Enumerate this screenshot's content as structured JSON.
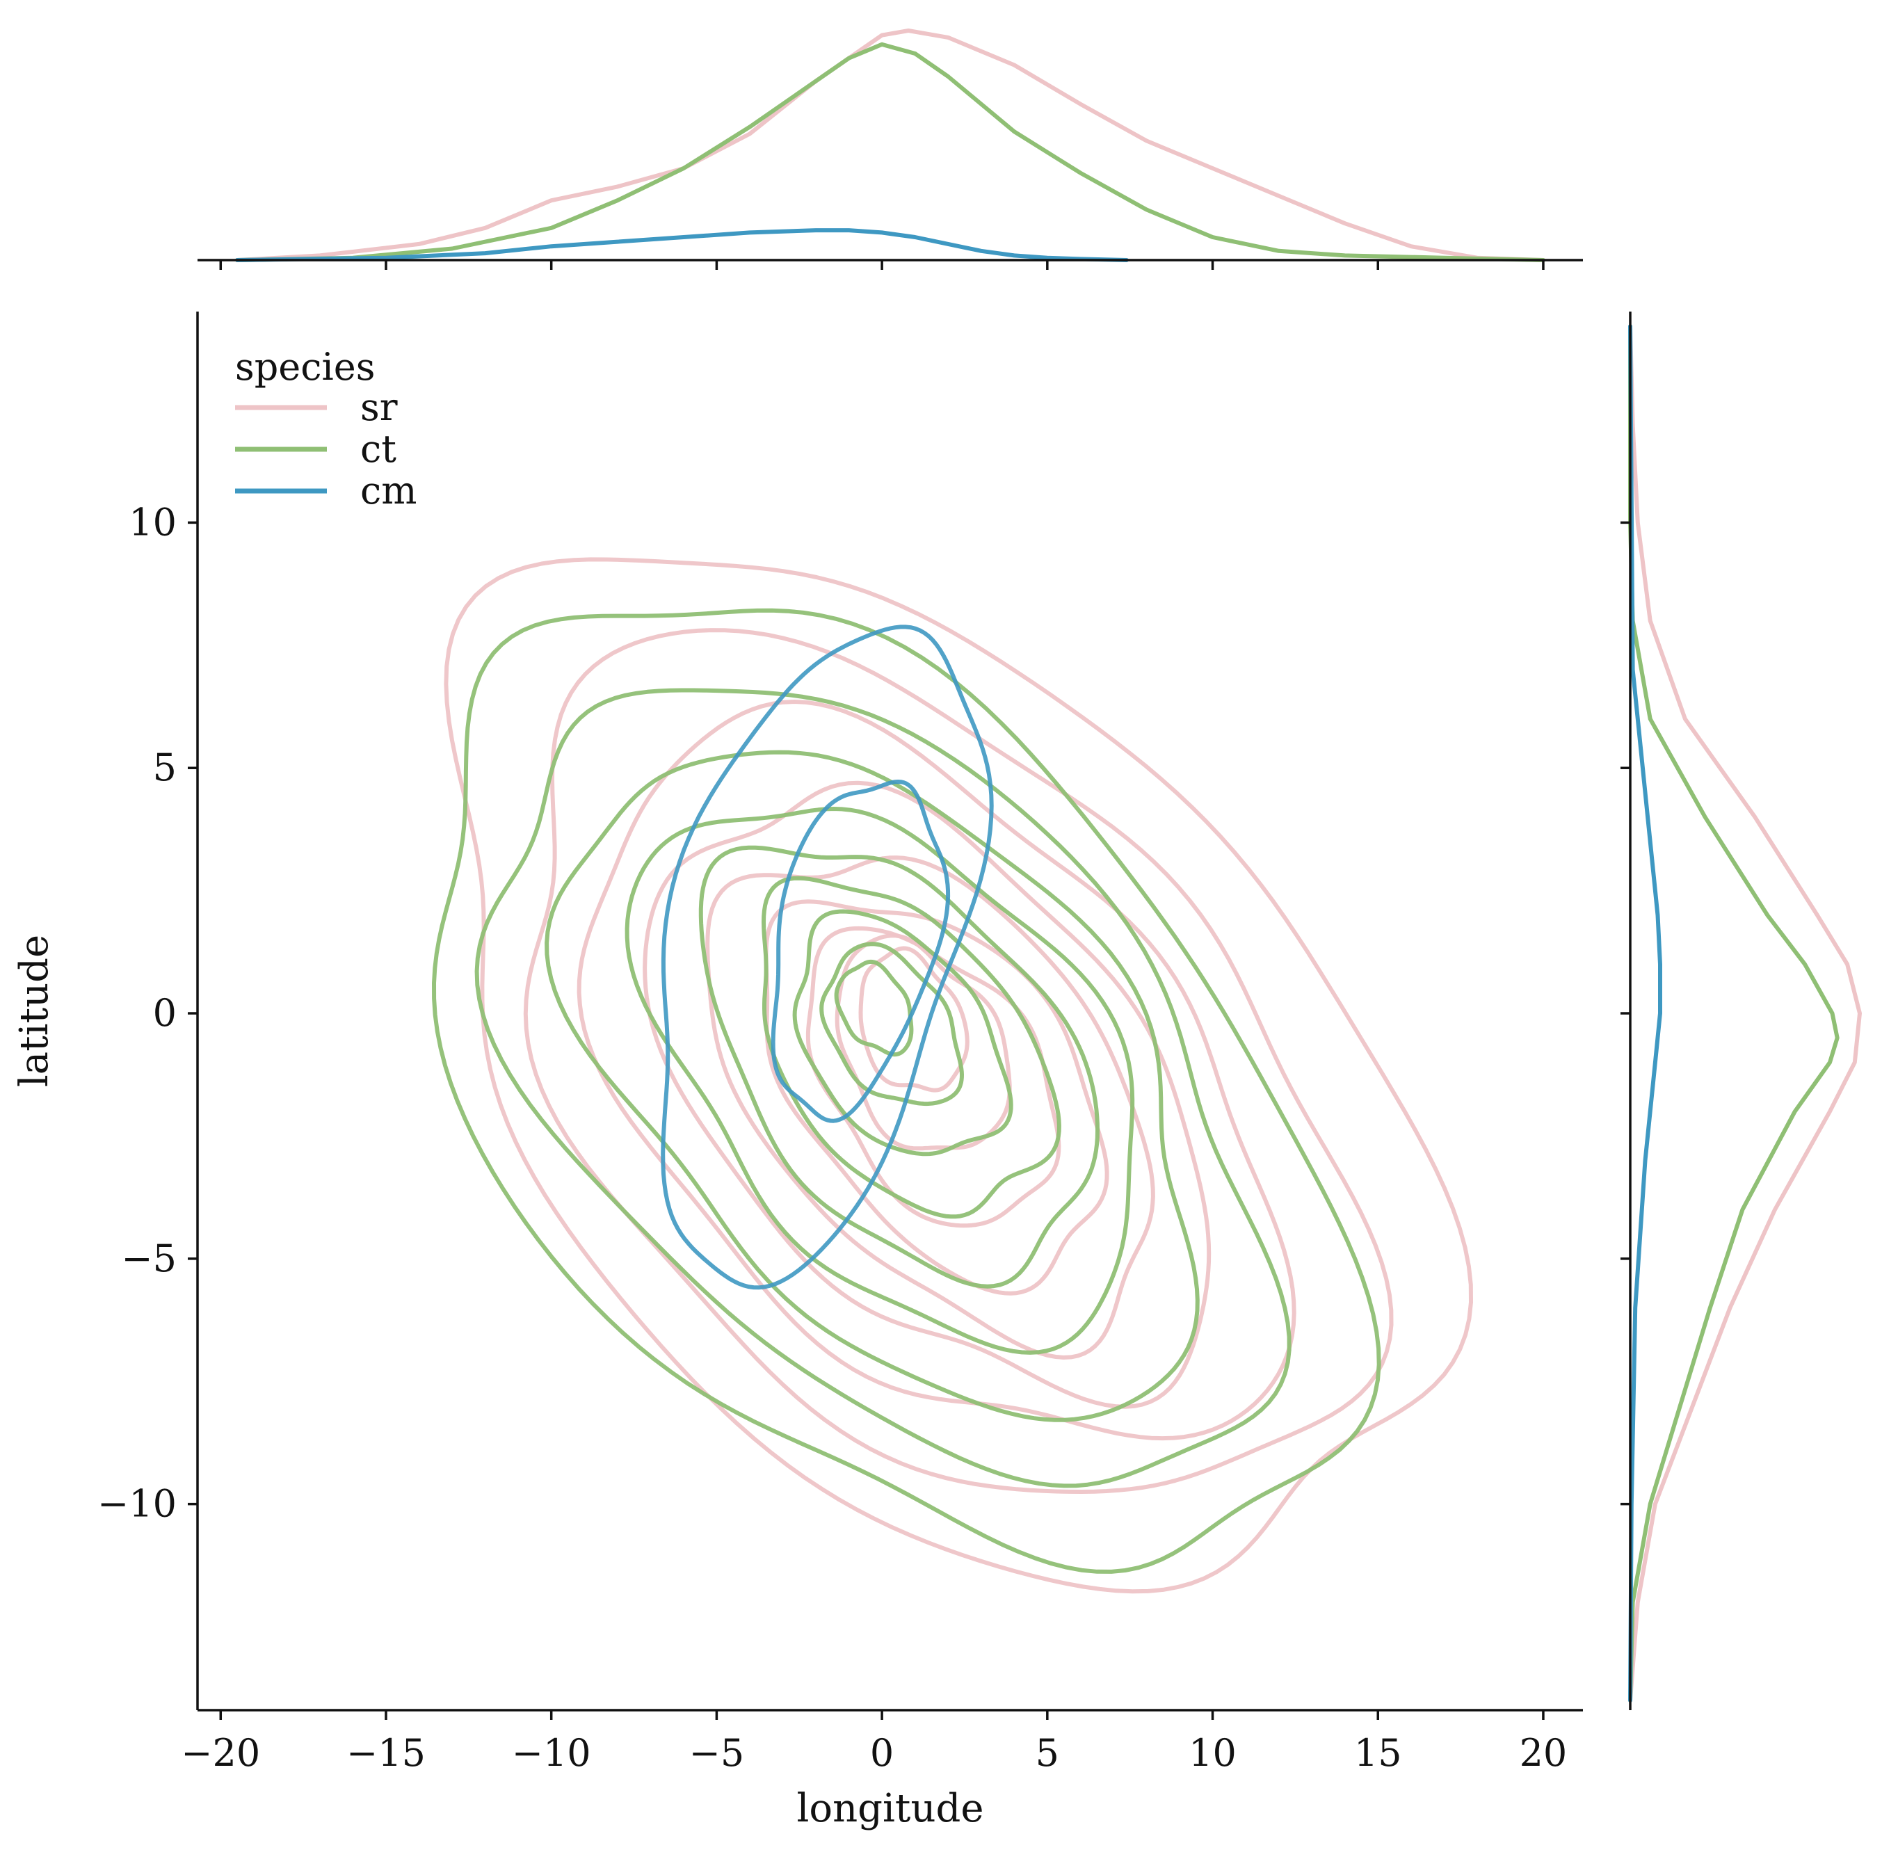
{
  "chart_data": {
    "type": "kde-joint",
    "xlabel": "longitude",
    "ylabel": "latitude",
    "xlim": [
      -20.7,
      21.2
    ],
    "ylim": [
      -14.2,
      14.3
    ],
    "x_ticks": [
      -20,
      -15,
      -10,
      -5,
      0,
      5,
      10,
      15,
      20
    ],
    "y_ticks": [
      -10,
      -5,
      0,
      5,
      10
    ],
    "x_tick_labels": [
      "−20",
      "−15",
      "−10",
      "−5",
      "0",
      "5",
      "10",
      "15",
      "20"
    ],
    "y_tick_labels": [
      "−10",
      "−5",
      "0",
      "5",
      "10"
    ],
    "grid": false,
    "legend": {
      "title": "species",
      "placement": "top-left",
      "entries": [
        "sr",
        "ct",
        "cm"
      ]
    },
    "series": [
      {
        "name": "sr",
        "color": "#eec4c7",
        "center": [
          1.5,
          -1.2
        ],
        "contours": [
          {
            "rx": 16.0,
            "ry": 8.8,
            "angle": -25,
            "dx": 0.0,
            "dy": 0.0
          },
          {
            "rx": 13.6,
            "ry": 7.3,
            "angle": -25,
            "dx": 0.0,
            "dy": -0.2
          },
          {
            "rx": 11.3,
            "ry": 6.0,
            "angle": -26,
            "dx": 0.0,
            "dy": -0.3
          },
          {
            "rx": 9.2,
            "ry": 4.9,
            "angle": -27,
            "dx": 0.1,
            "dy": -0.4
          },
          {
            "rx": 7.3,
            "ry": 4.0,
            "angle": -28,
            "dx": 0.1,
            "dy": -0.4
          },
          {
            "rx": 5.6,
            "ry": 3.2,
            "angle": -29,
            "dx": 0.1,
            "dy": -0.3
          },
          {
            "rx": 4.1,
            "ry": 2.5,
            "angle": -30,
            "dx": 0.0,
            "dy": -0.1
          },
          {
            "rx": 2.8,
            "ry": 1.9,
            "angle": -30,
            "dx": -0.3,
            "dy": 0.5
          },
          {
            "rx": 1.7,
            "ry": 1.3,
            "angle": -30,
            "dx": -0.6,
            "dy": 1.0
          }
        ],
        "marginal_x": {
          "x": [
            -19.5,
            -17,
            -14,
            -12,
            -10,
            -8,
            -6,
            -4,
            -2,
            0,
            0.8,
            2,
            4,
            6,
            8,
            10,
            12,
            14,
            16,
            18,
            20
          ],
          "density": [
            0.0,
            0.002,
            0.007,
            0.014,
            0.026,
            0.032,
            0.04,
            0.055,
            0.078,
            0.098,
            0.1,
            0.097,
            0.085,
            0.068,
            0.052,
            0.04,
            0.028,
            0.016,
            0.006,
            0.001,
            0.0
          ]
        },
        "marginal_y": {
          "y": [
            -14,
            -12,
            -10,
            -8,
            -6,
            -4,
            -2,
            -1,
            0,
            1,
            2,
            4,
            6,
            8,
            10,
            12,
            14
          ],
          "density": [
            0.0,
            0.003,
            0.01,
            0.025,
            0.04,
            0.058,
            0.08,
            0.09,
            0.092,
            0.087,
            0.075,
            0.05,
            0.022,
            0.008,
            0.003,
            0.001,
            0.0
          ]
        }
      },
      {
        "name": "ct",
        "color": "#8fbf74",
        "center": [
          0.0,
          -1.5
        ],
        "contours": [
          {
            "rx": 15.0,
            "ry": 8.0,
            "angle": -26,
            "dx": 0.0,
            "dy": 0.0
          },
          {
            "rx": 12.6,
            "ry": 6.6,
            "angle": -26,
            "dx": 0.0,
            "dy": 0.1
          },
          {
            "rx": 10.3,
            "ry": 5.5,
            "angle": -27,
            "dx": 0.2,
            "dy": 0.2
          },
          {
            "rx": 8.2,
            "ry": 4.5,
            "angle": -27,
            "dx": 0.4,
            "dy": 0.4
          },
          {
            "rx": 6.4,
            "ry": 3.6,
            "angle": -28,
            "dx": 0.5,
            "dy": 0.6
          },
          {
            "rx": 4.8,
            "ry": 2.8,
            "angle": -28,
            "dx": 0.6,
            "dy": 0.8
          },
          {
            "rx": 3.4,
            "ry": 2.1,
            "angle": -28,
            "dx": 0.5,
            "dy": 1.0
          },
          {
            "rx": 2.2,
            "ry": 1.4,
            "angle": -28,
            "dx": 0.3,
            "dy": 1.2
          },
          {
            "rx": 1.2,
            "ry": 0.8,
            "angle": -28,
            "dx": -0.2,
            "dy": 1.6
          }
        ],
        "marginal_x": {
          "x": [
            -19.5,
            -16,
            -13,
            -10,
            -8,
            -6,
            -4,
            -2,
            -1,
            0,
            1,
            2,
            4,
            6,
            8,
            10,
            12,
            14,
            17,
            20
          ],
          "density": [
            0.0,
            0.001,
            0.005,
            0.014,
            0.026,
            0.04,
            0.058,
            0.078,
            0.088,
            0.094,
            0.09,
            0.08,
            0.056,
            0.038,
            0.022,
            0.01,
            0.004,
            0.002,
            0.001,
            0.0
          ]
        },
        "marginal_y": {
          "y": [
            -14,
            -12,
            -10,
            -8,
            -6,
            -4,
            -2,
            -1,
            -0.5,
            0,
            1,
            2,
            4,
            6,
            8,
            10,
            14
          ],
          "density": [
            0.0,
            0.001,
            0.008,
            0.02,
            0.032,
            0.045,
            0.066,
            0.08,
            0.083,
            0.081,
            0.07,
            0.055,
            0.03,
            0.008,
            0.001,
            0.0,
            0.0
          ]
        }
      },
      {
        "name": "cm",
        "color": "#3e98c2",
        "center": [
          -2.0,
          1.3
        ],
        "contours": [
          {
            "rx": 7.2,
            "ry": 4.1,
            "angle": 63,
            "dx": 0.0,
            "dy": 0.0
          },
          {
            "rx": 3.6,
            "ry": 2.3,
            "angle": 65,
            "dx": 1.2,
            "dy": 0.1
          }
        ],
        "marginal_x": {
          "x": [
            -19.5,
            -15,
            -12,
            -10,
            -8,
            -6,
            -4,
            -2,
            -1,
            0,
            1,
            2,
            3,
            4,
            5,
            6,
            7.4
          ],
          "density": [
            0.0,
            0.001,
            0.003,
            0.006,
            0.008,
            0.01,
            0.012,
            0.013,
            0.013,
            0.012,
            0.01,
            0.007,
            0.004,
            0.002,
            0.001,
            0.0005,
            0.0
          ]
        },
        "marginal_y": {
          "y": [
            -14,
            -10,
            -6,
            -3,
            -1,
            0,
            1,
            2,
            4,
            6,
            7,
            14
          ],
          "density": [
            0.0,
            0.0005,
            0.002,
            0.006,
            0.01,
            0.012,
            0.012,
            0.011,
            0.007,
            0.003,
            0.001,
            0.0
          ]
        }
      }
    ]
  }
}
